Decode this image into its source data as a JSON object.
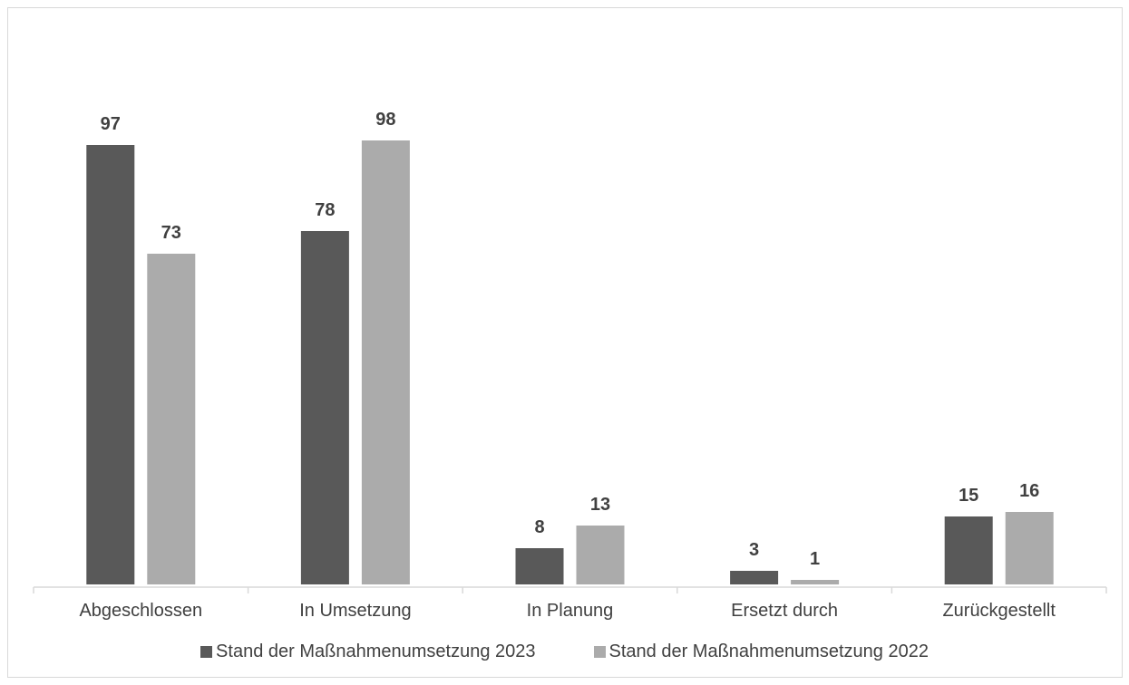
{
  "chart_data": {
    "type": "bar",
    "categories": [
      "Abgeschlossen",
      "In Umsetzung",
      "In Planung",
      "Ersetzt durch",
      "Zurückgestellt"
    ],
    "series": [
      {
        "name": "Stand der Maßnahmenumsetzung 2023",
        "values": [
          97,
          78,
          8,
          3,
          15
        ],
        "color": "#595959"
      },
      {
        "name": "Stand der Maßnahmenumsetzung 2022",
        "values": [
          73,
          98,
          13,
          1,
          16
        ],
        "color": "#ababab"
      }
    ],
    "ylim": [
      0,
      100
    ],
    "grid": false,
    "legend_position": "bottom",
    "data_labels": true
  }
}
